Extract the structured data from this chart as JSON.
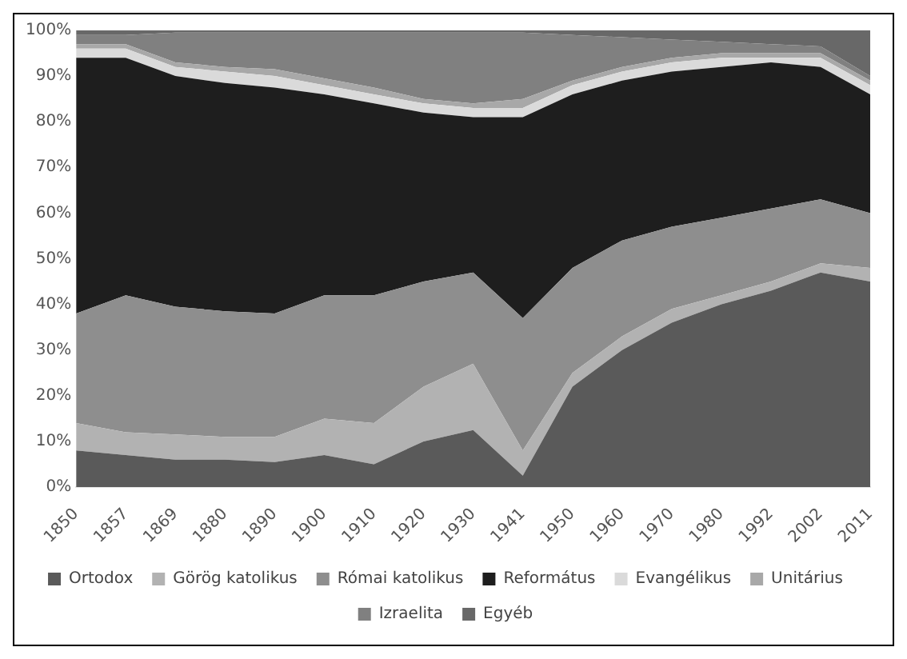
{
  "chart_data": {
    "type": "area",
    "stacked": true,
    "categories": [
      "1850",
      "1857",
      "1869",
      "1880",
      "1890",
      "1900",
      "1910",
      "1920",
      "1930",
      "1941",
      "1950",
      "1960",
      "1970",
      "1980",
      "1992",
      "2002",
      "2011"
    ],
    "series": [
      {
        "name": "Ortodox",
        "color": "#5a5a5a",
        "values": [
          8,
          7,
          6,
          6,
          5.5,
          7,
          5,
          10,
          12.5,
          2.5,
          22,
          30,
          36,
          40,
          43,
          47,
          45
        ]
      },
      {
        "name": "Görög katolikus",
        "color": "#b2b2b2",
        "values": [
          6,
          5,
          5.5,
          5,
          5.5,
          8,
          9,
          12,
          14.5,
          5.5,
          3,
          3,
          3,
          2,
          2,
          2,
          3
        ]
      },
      {
        "name": "Római katolikus",
        "color": "#8e8e8e",
        "values": [
          24,
          30,
          28,
          27.5,
          27,
          27,
          28,
          23,
          20,
          29,
          23,
          21,
          18,
          17,
          16,
          14,
          12
        ]
      },
      {
        "name": "Református",
        "color": "#1e1e1e",
        "values": [
          56,
          52,
          50.5,
          50,
          49.5,
          44,
          42,
          37,
          34,
          44,
          38,
          35,
          34,
          33,
          32,
          29,
          26
        ]
      },
      {
        "name": "Evangélikus",
        "color": "#dadada",
        "values": [
          2,
          2,
          2,
          2.5,
          2.5,
          2,
          2,
          2,
          2,
          2,
          2,
          2,
          2,
          2,
          1,
          2,
          2
        ]
      },
      {
        "name": "Unitárius",
        "color": "#a8a8a8",
        "values": [
          1,
          1,
          1,
          1,
          1.5,
          1.5,
          1.5,
          1,
          1,
          2,
          1,
          1,
          1,
          1,
          1,
          1,
          1
        ]
      },
      {
        "name": "Izraelita",
        "color": "#808080",
        "values": [
          2,
          2,
          6.5,
          7.5,
          8,
          10,
          12,
          14.5,
          15.5,
          14.5,
          10,
          6.5,
          4,
          2.5,
          2,
          1.5,
          1
        ]
      },
      {
        "name": "Egyéb",
        "color": "#686868",
        "values": [
          1,
          1,
          0.5,
          0.5,
          0.5,
          0.5,
          0.5,
          0.5,
          0.5,
          0.5,
          1,
          1.5,
          2,
          2.5,
          3,
          3.5,
          10
        ]
      }
    ],
    "ylim": [
      0,
      100
    ],
    "yticks": [
      {
        "value": 0,
        "label": "0%"
      },
      {
        "value": 10,
        "label": "10%"
      },
      {
        "value": 20,
        "label": "20%"
      },
      {
        "value": 30,
        "label": "30%"
      },
      {
        "value": 40,
        "label": "40%"
      },
      {
        "value": 50,
        "label": "50%"
      },
      {
        "value": 60,
        "label": "60%"
      },
      {
        "value": 70,
        "label": "70%"
      },
      {
        "value": 80,
        "label": "80%"
      },
      {
        "value": 90,
        "label": "90%"
      },
      {
        "value": 100,
        "label": "100%"
      }
    ],
    "grid": false,
    "legend": "bottom"
  }
}
